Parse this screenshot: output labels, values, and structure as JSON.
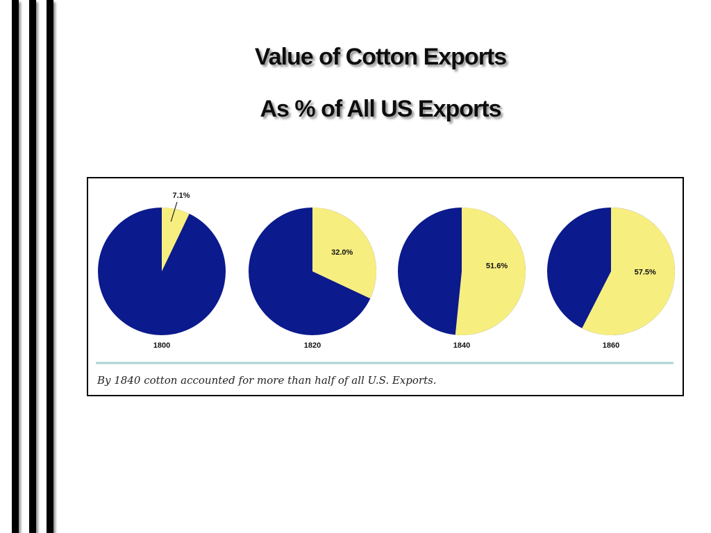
{
  "slide": {
    "title": [
      "Value of Cotton Exports",
      "As % of All US Exports"
    ]
  },
  "chart_data": [
    {
      "type": "pie",
      "title": "1800",
      "values": [
        7.1
      ],
      "value_labels": [
        "7.1%"
      ],
      "color": "#f7ee80",
      "rest_color": "#0b1a8c"
    },
    {
      "type": "pie",
      "title": "1820",
      "values": [
        32.0
      ],
      "value_labels": [
        "32.0%"
      ],
      "color": "#f7ee80",
      "rest_color": "#0b1a8c"
    },
    {
      "type": "pie",
      "title": "1840",
      "values": [
        51.6
      ],
      "value_labels": [
        "51.6%"
      ],
      "color": "#f7ee80",
      "rest_color": "#0b1a8c"
    },
    {
      "type": "pie",
      "title": "1860",
      "values": [
        57.5
      ],
      "value_labels": [
        "57.5%"
      ],
      "color": "#f7ee80",
      "rest_color": "#0b1a8c"
    }
  ],
  "caption": "By 1840 cotton accounted for more than half of all U.S. Exports."
}
